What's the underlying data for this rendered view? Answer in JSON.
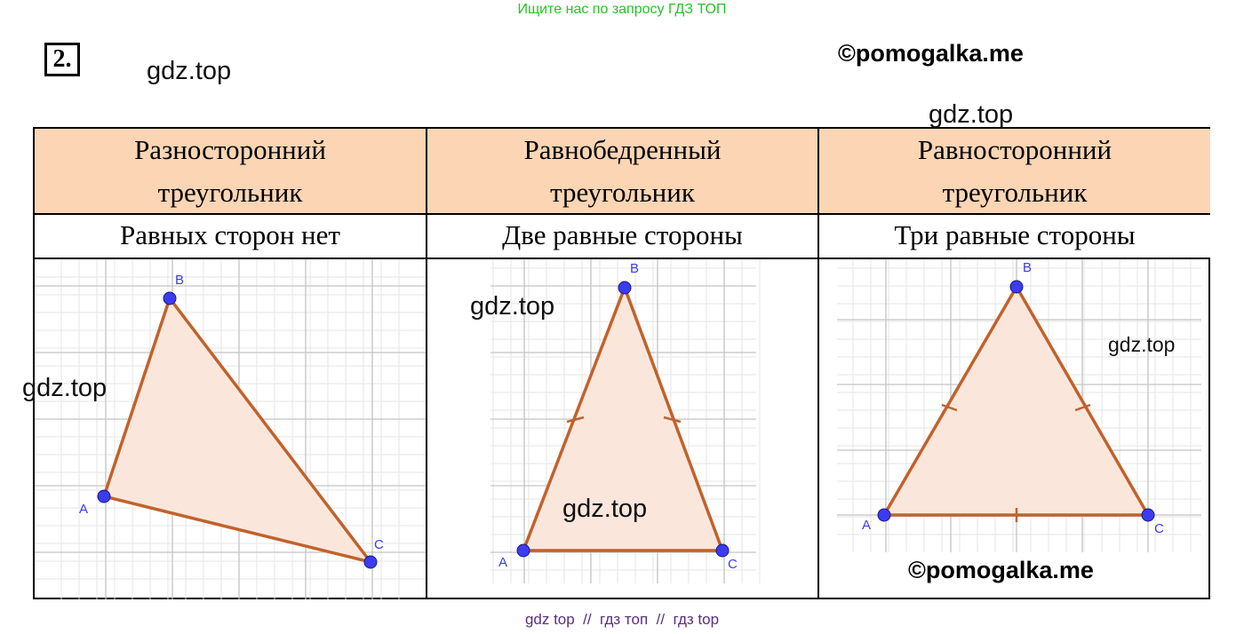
{
  "banner": "Ищите нас по запросу ГДЗ ТОП",
  "task_number": "2.",
  "watermarks": {
    "gdz_1": "gdz.top",
    "gdz_2": "gdz.top",
    "gdz_3": "gdz.top",
    "gdz_4": "gdz.top",
    "gdz_5": "gdz.top",
    "gdz_6": "gdz.top",
    "copyright_top": "©pomogalka.me",
    "copyright_bottom": "©pomogalka.me"
  },
  "columns": [
    {
      "title_line1": "Разносторонний",
      "title_line2": "треугольник",
      "property": "Равных сторон нет",
      "vertices": {
        "A": "A",
        "B": "B",
        "C": "C"
      }
    },
    {
      "title_line1": "Равнобедренный",
      "title_line2": "треугольник",
      "property": "Две равные стороны",
      "vertices": {
        "A": "A",
        "B": "B",
        "C": "C"
      }
    },
    {
      "title_line1": "Равносторонний",
      "title_line2": "треугольник",
      "property": "Три равные стороны",
      "vertices": {
        "A": "A",
        "B": "B",
        "C": "C"
      }
    }
  ],
  "colors": {
    "header_fill": "#fcd5b4",
    "triangle_stroke": "#c0622b",
    "triangle_fill": "#fbe6dc",
    "vertex_fill": "#3b3bf0",
    "grid_major": "#c4c4c4",
    "grid_minor": "#e6e6e6"
  },
  "footer": "gdz top  //  гдз топ  //  гдз top"
}
